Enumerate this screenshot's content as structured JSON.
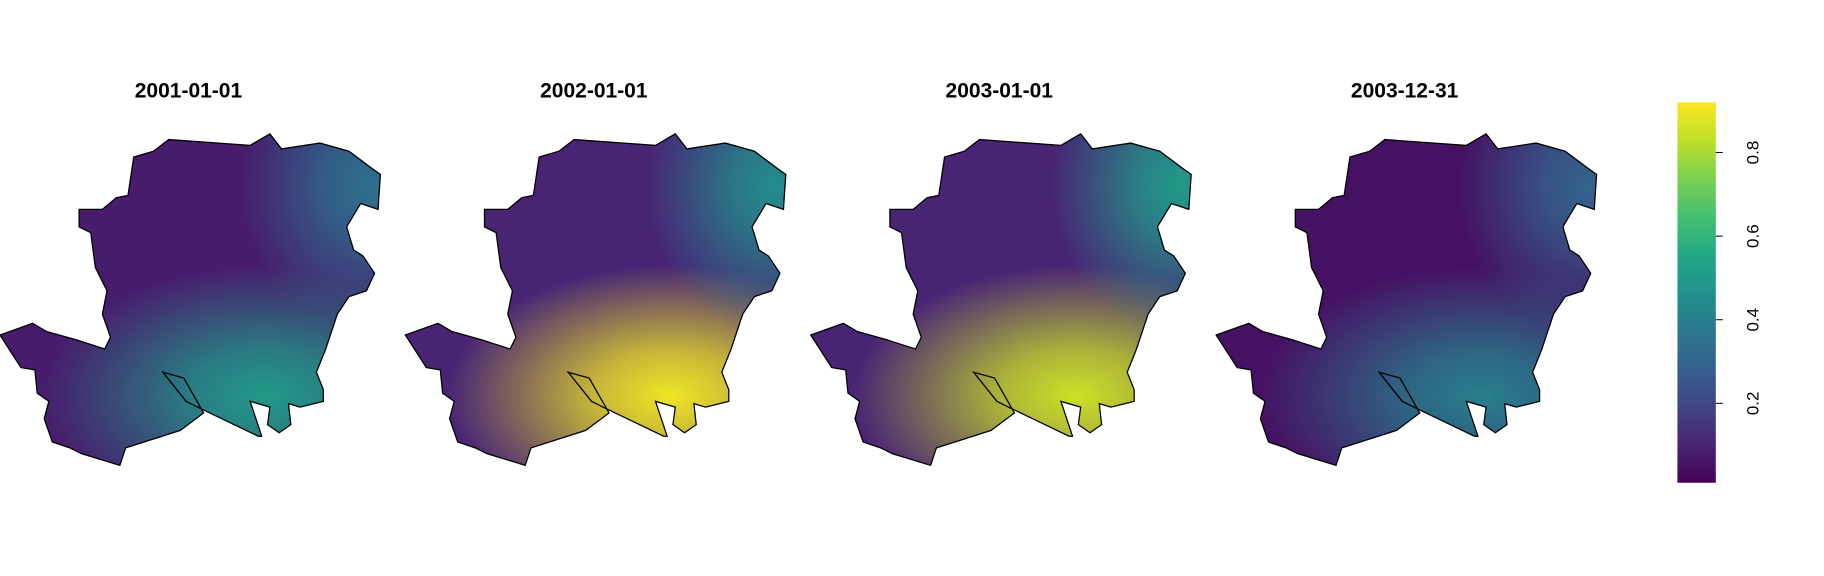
{
  "panels": [
    {
      "title": "2001-01-01",
      "base": 0.08,
      "south": 0.5,
      "northeast": 0.35
    },
    {
      "title": "2002-01-01",
      "base": 0.1,
      "south": 0.9,
      "northeast": 0.45
    },
    {
      "title": "2003-01-01",
      "base": 0.1,
      "south": 0.85,
      "northeast": 0.5
    },
    {
      "title": "2003-12-31",
      "base": 0.05,
      "south": 0.4,
      "northeast": 0.3
    }
  ],
  "colorbar": {
    "lim": [
      0.01,
      0.92
    ],
    "ticks": [
      0.2,
      0.4,
      0.6,
      0.8
    ]
  }
}
